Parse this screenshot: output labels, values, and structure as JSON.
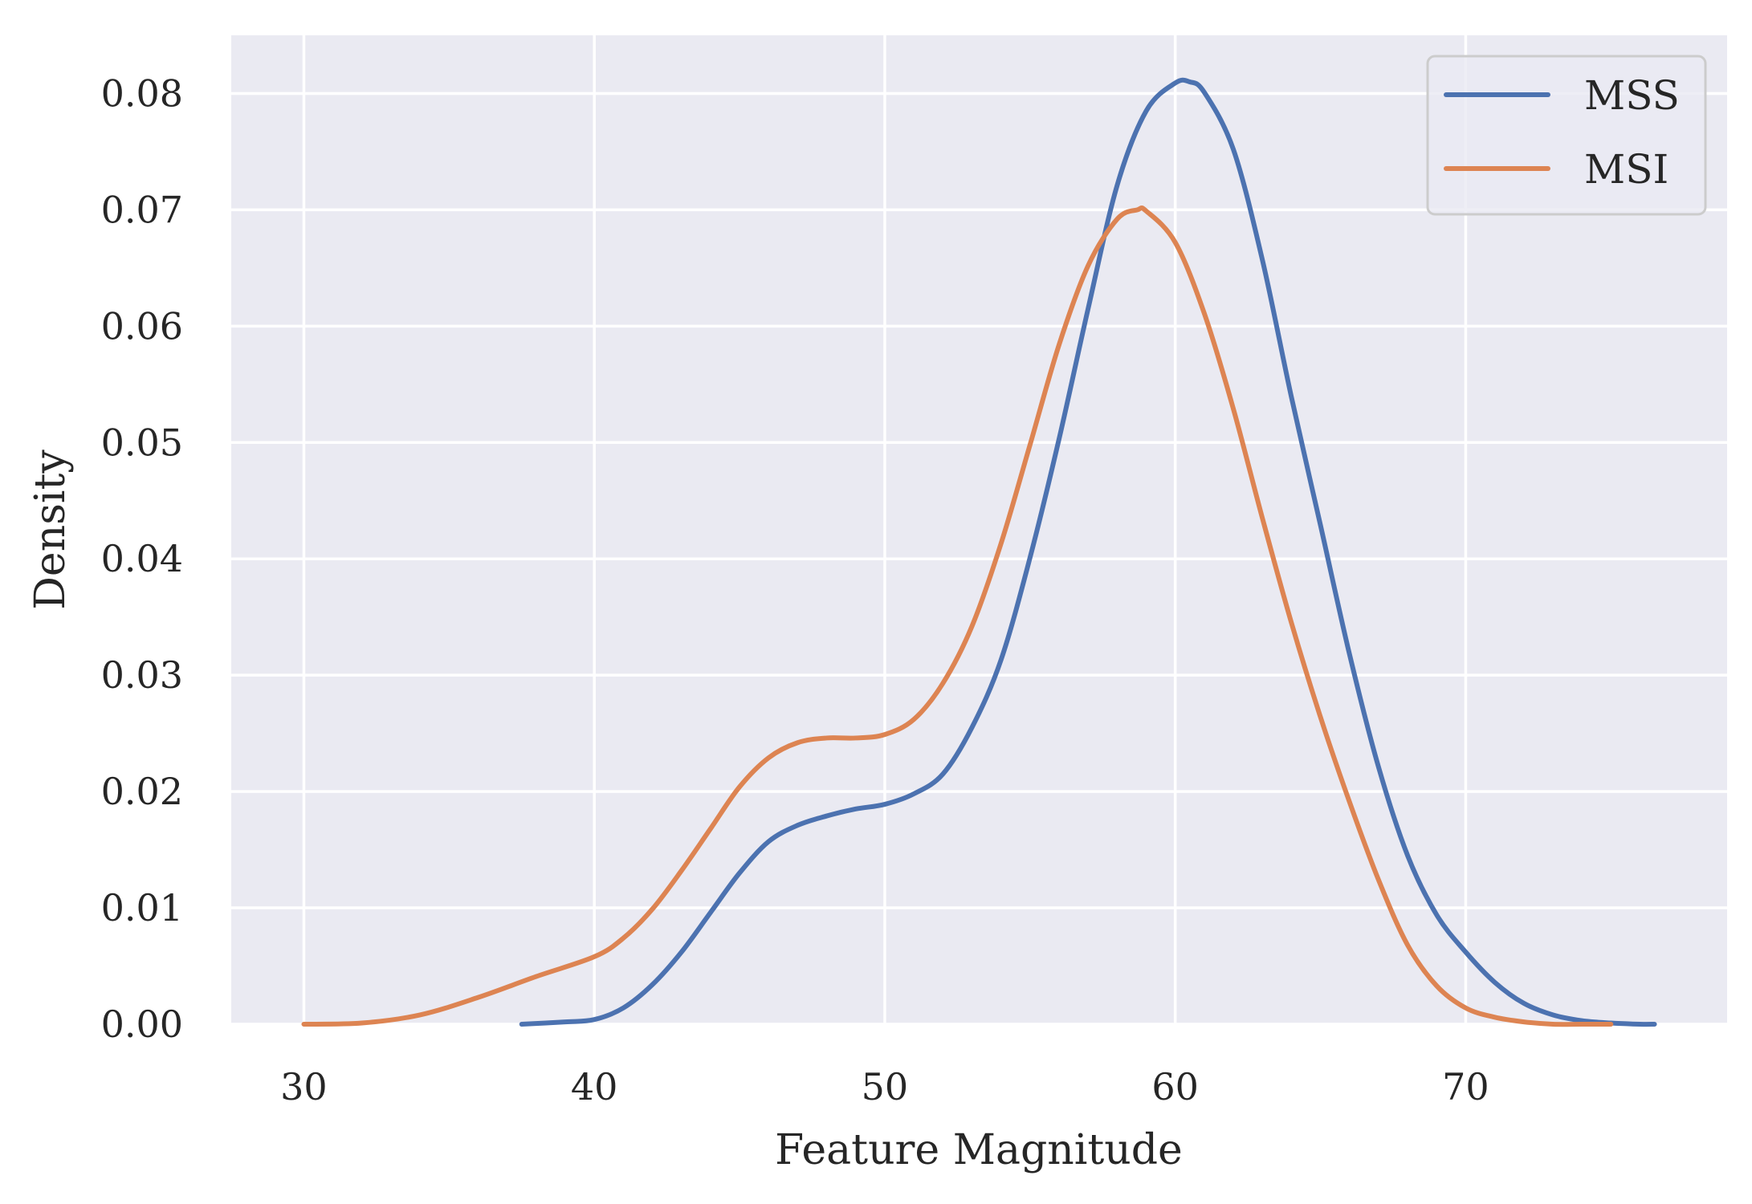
{
  "chart_data": {
    "type": "line",
    "title": "",
    "xlabel": "Feature Magnitude",
    "ylabel": "Density",
    "xlim": [
      27.5,
      79.0
    ],
    "ylim": [
      0.0,
      0.085
    ],
    "xticks": [
      30,
      40,
      50,
      60,
      70
    ],
    "xtick_labels": [
      "30",
      "40",
      "50",
      "60",
      "70"
    ],
    "yticks": [
      0.0,
      0.01,
      0.02,
      0.03,
      0.04,
      0.05,
      0.06,
      0.07,
      0.08
    ],
    "ytick_labels": [
      "0.00",
      "0.01",
      "0.02",
      "0.03",
      "0.04",
      "0.05",
      "0.06",
      "0.07",
      "0.08"
    ],
    "grid": true,
    "background": "#eaeaf2",
    "legend": {
      "placement": "top-right"
    },
    "series": [
      {
        "name": "MSS",
        "color": "#4c72b0",
        "x": [
          37.5,
          39,
          40,
          41,
          42,
          43,
          44,
          45,
          46,
          47,
          48,
          49,
          50,
          51,
          52,
          53,
          54,
          55,
          56,
          57,
          58,
          59,
          60,
          60.5,
          61,
          62,
          63,
          64,
          65,
          66,
          67,
          68,
          69,
          70,
          71,
          72,
          73,
          74,
          75,
          76,
          76.5
        ],
        "y": [
          0.0,
          0.0002,
          0.0004,
          0.0014,
          0.0034,
          0.0062,
          0.0096,
          0.013,
          0.0157,
          0.0171,
          0.0179,
          0.0185,
          0.0189,
          0.0198,
          0.0215,
          0.0255,
          0.0313,
          0.0401,
          0.0503,
          0.0615,
          0.0721,
          0.0785,
          0.0809,
          0.081,
          0.0801,
          0.0752,
          0.0657,
          0.0539,
          0.0429,
          0.0318,
          0.0221,
          0.0145,
          0.0094,
          0.0062,
          0.0036,
          0.0018,
          0.0008,
          0.0003,
          0.0001,
          0.0,
          0.0
        ]
      },
      {
        "name": "MSI",
        "color": "#dd8452",
        "x": [
          30,
          32,
          34,
          36,
          38,
          40,
          41,
          42,
          43,
          44,
          45,
          46,
          47,
          48,
          49,
          50,
          51,
          52,
          53,
          54,
          55,
          56,
          57,
          58,
          58.7,
          59,
          60,
          61,
          62,
          63,
          64,
          65,
          66,
          67,
          68,
          69,
          70,
          71,
          72,
          73,
          74,
          75
        ],
        "y": [
          0.0,
          0.0001,
          0.0008,
          0.0023,
          0.0041,
          0.0058,
          0.0074,
          0.0099,
          0.0132,
          0.0168,
          0.0204,
          0.0229,
          0.0242,
          0.0246,
          0.0246,
          0.0249,
          0.0262,
          0.0293,
          0.0342,
          0.0413,
          0.0498,
          0.0584,
          0.0652,
          0.0692,
          0.07,
          0.0699,
          0.0672,
          0.0611,
          0.0529,
          0.0435,
          0.0345,
          0.0264,
          0.0191,
          0.0124,
          0.0068,
          0.0033,
          0.0014,
          0.0006,
          0.0002,
          0.0,
          0.0,
          0.0
        ]
      }
    ]
  }
}
